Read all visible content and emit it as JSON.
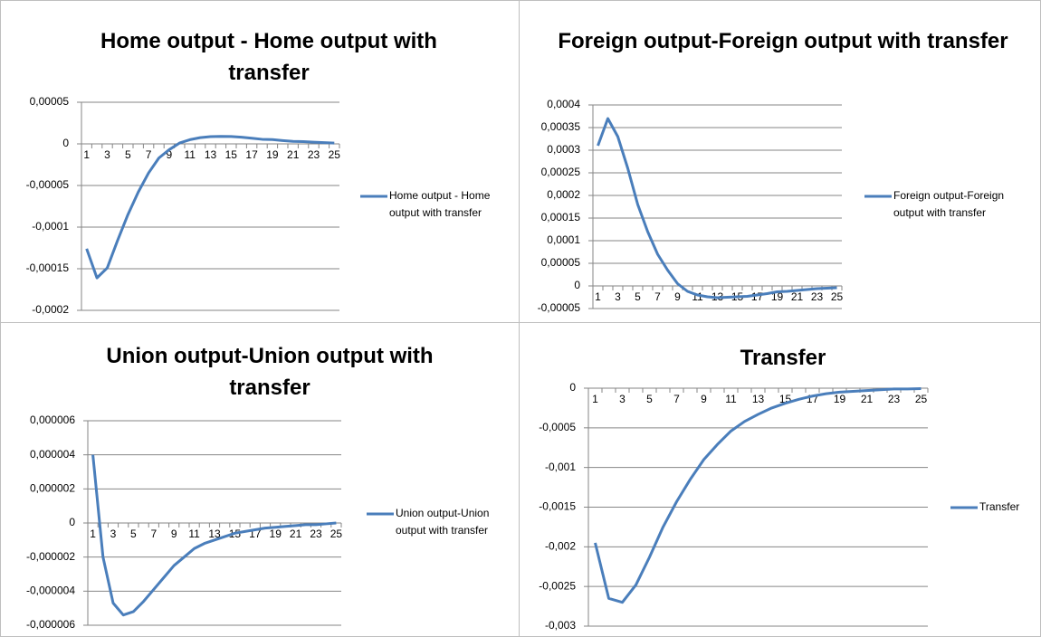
{
  "chart_data": [
    {
      "type": "line",
      "title": "Home output - Home output with transfer",
      "categories": [
        "1",
        null,
        "3",
        null,
        "5",
        null,
        "7",
        null,
        "9",
        null,
        "11",
        null,
        "13",
        null,
        "15",
        null,
        "17",
        null,
        "19",
        null,
        "21",
        null,
        "23",
        null,
        "25"
      ],
      "series": [
        {
          "name": "Home output - Home output with transfer",
          "color": "#4a7ebb",
          "values": [
            -0.000126,
            -0.000161,
            -0.000149,
            -0.000116,
            -8.5e-05,
            -5.8e-05,
            -3.5e-05,
            -1.7e-05,
            -7e-06,
            1e-06,
            5e-06,
            7.5e-06,
            8.7e-06,
            9e-06,
            8.8e-06,
            8e-06,
            6.8e-06,
            5.5e-06,
            5.2e-06,
            4e-06,
            3e-06,
            2.7e-06,
            2e-06,
            1.5e-06,
            1e-06
          ]
        }
      ],
      "ylim": [
        -0.0002,
        5e-05
      ],
      "yticks": [
        {
          "value": -0.0002,
          "label": "-0,0002"
        },
        {
          "value": -0.00015,
          "label": "-0,00015"
        },
        {
          "value": -0.0001,
          "label": "-0,0001"
        },
        {
          "value": -5e-05,
          "label": "-0,00005"
        },
        0,
        {
          "value": 5e-05,
          "label": "0,00005"
        }
      ],
      "grid": true,
      "legend": "right"
    },
    {
      "type": "line",
      "title": "Foreign output-Foreign output with transfer",
      "categories": [
        "1",
        null,
        "3",
        null,
        "5",
        null,
        "7",
        null,
        "9",
        null,
        "11",
        null,
        "13",
        null,
        "15",
        null,
        "17",
        null,
        "19",
        null,
        "21",
        null,
        "23",
        null,
        "25"
      ],
      "series": [
        {
          "name": "Foreign output-Foreign output with transfer",
          "color": "#4a7ebb",
          "values": [
            0.00031,
            0.00037,
            0.00033,
            0.00026,
            0.00018,
            0.00012,
            7e-05,
            3.5e-05,
            5e-06,
            -1.2e-05,
            -2e-05,
            -2.4e-05,
            -2.6e-05,
            -2.5e-05,
            -2.4e-05,
            -2.3e-05,
            -2e-05,
            -1.7e-05,
            -1.3e-05,
            -1.2e-05,
            -1e-05,
            -8e-06,
            -6e-06,
            -5e-06,
            -4e-06
          ]
        }
      ],
      "ylim": [
        -5e-05,
        0.0004
      ],
      "yticks": [
        {
          "value": -5e-05,
          "label": "-0,00005"
        },
        0,
        {
          "value": 5e-05,
          "label": "0,00005"
        },
        {
          "value": 0.0001,
          "label": "0,0001"
        },
        {
          "value": 0.00015,
          "label": "0,00015"
        },
        {
          "value": 0.0002,
          "label": "0,0002"
        },
        {
          "value": 0.00025,
          "label": "0,00025"
        },
        {
          "value": 0.0003,
          "label": "0,0003"
        },
        {
          "value": 0.00035,
          "label": "0,00035"
        },
        {
          "value": 0.0004,
          "label": "0,0004"
        }
      ],
      "grid": true,
      "legend": "right"
    },
    {
      "type": "line",
      "title": "Union output-Union output with transfer",
      "categories": [
        "1",
        null,
        "3",
        null,
        "5",
        null,
        "7",
        null,
        "9",
        null,
        "11",
        null,
        "13",
        null,
        "15",
        null,
        "17",
        null,
        "19",
        null,
        "21",
        null,
        "23",
        null,
        "25"
      ],
      "series": [
        {
          "name": "Union output-Union output with transfer",
          "color": "#4a7ebb",
          "values": [
            4e-06,
            -2e-06,
            -4.7e-06,
            -5.4e-06,
            -5.2e-06,
            -4.6e-06,
            -3.9e-06,
            -3.2e-06,
            -2.5e-06,
            -2e-06,
            -1.5e-06,
            -1.2e-06,
            -1e-06,
            -8e-07,
            -6e-07,
            -5e-07,
            -4e-07,
            -3e-07,
            -2.5e-07,
            -2e-07,
            -1.5e-07,
            -1e-07,
            -1e-07,
            -5e-08,
            0
          ]
        }
      ],
      "ylim": [
        -6e-06,
        6e-06
      ],
      "yticks": [
        {
          "value": -6e-06,
          "label": "-0,000006"
        },
        {
          "value": -4e-06,
          "label": "-0,000004"
        },
        {
          "value": -2e-06,
          "label": "-0,000002"
        },
        0,
        {
          "value": 2e-06,
          "label": "0,000002"
        },
        {
          "value": 4e-06,
          "label": "0,000004"
        },
        {
          "value": 6e-06,
          "label": "0,000006"
        }
      ],
      "grid": true,
      "legend": "right"
    },
    {
      "type": "line",
      "title": "Transfer",
      "categories": [
        "1",
        null,
        "3",
        null,
        "5",
        null,
        "7",
        null,
        "9",
        null,
        "11",
        null,
        "13",
        null,
        "15",
        null,
        "17",
        null,
        "19",
        null,
        "21",
        null,
        "23",
        null,
        "25"
      ],
      "series": [
        {
          "name": "Transfer",
          "color": "#4a7ebb",
          "values": [
            -0.00195,
            -0.00265,
            -0.0027,
            -0.00248,
            -0.00213,
            -0.00175,
            -0.00143,
            -0.00115,
            -0.0009,
            -0.00071,
            -0.00054,
            -0.00042,
            -0.00033,
            -0.00025,
            -0.00019,
            -0.00014,
            -0.0001,
            -7e-05,
            -5e-05,
            -4e-05,
            -3e-05,
            -2e-05,
            -1e-05,
            -1e-05,
            -5e-06
          ]
        }
      ],
      "ylim": [
        -0.003,
        0
      ],
      "yticks": [
        {
          "value": -0.003,
          "label": "-0,003"
        },
        {
          "value": -0.0025,
          "label": "-0,0025"
        },
        {
          "value": -0.002,
          "label": "-0,002"
        },
        {
          "value": -0.0015,
          "label": "-0,0015"
        },
        {
          "value": -0.001,
          "label": "-0,001"
        },
        {
          "value": -0.0005,
          "label": "-0,0005"
        },
        0
      ],
      "grid": true,
      "legend": "right"
    }
  ]
}
